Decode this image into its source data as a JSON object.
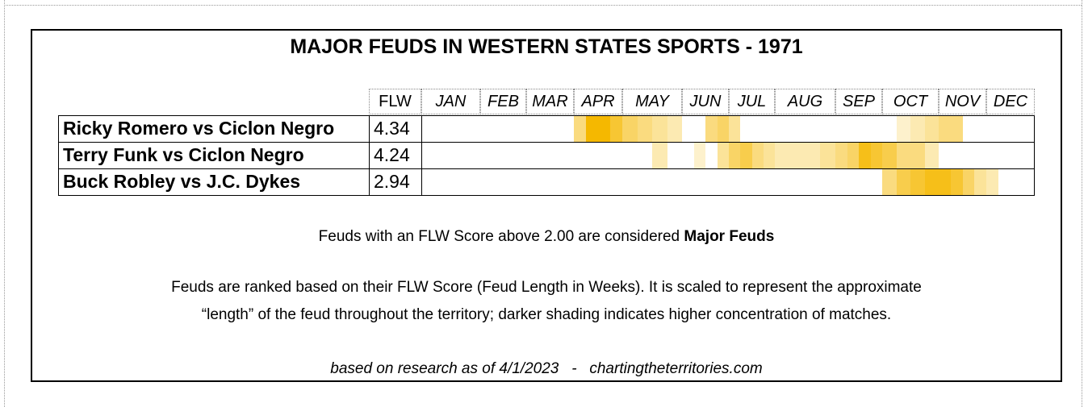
{
  "title": "MAJOR FEUDS IN WESTERN STATES SPORTS - 1971",
  "table": {
    "score_header": "FLW",
    "months": [
      "JAN",
      "FEB",
      "MAR",
      "APR",
      "MAY",
      "JUN",
      "JUL",
      "AUG",
      "SEP",
      "OCT",
      "NOV",
      "DEC"
    ],
    "rows": [
      {
        "name": "Ricky Romero vs Ciclon Negro",
        "score": "4.34",
        "shading": [
          0,
          0,
          0,
          0,
          0,
          0,
          0,
          0,
          0,
          0,
          0,
          0,
          0.5,
          1,
          1,
          0.8,
          0.6,
          0.5,
          0.4,
          0.3,
          0,
          0,
          0.5,
          0.6,
          0.4,
          0,
          0,
          0,
          0,
          0,
          0,
          0,
          0,
          0,
          0,
          0,
          0,
          0.2,
          0.3,
          0.4,
          0.5,
          0.5,
          0,
          0,
          0,
          0,
          0,
          0
        ]
      },
      {
        "name": "Terry Funk vs Ciclon Negro",
        "score": "4.24",
        "shading": [
          0,
          0,
          0,
          0,
          0,
          0,
          0,
          0,
          0,
          0,
          0,
          0,
          0,
          0,
          0,
          0,
          0,
          0,
          0.3,
          0,
          0,
          0.2,
          0,
          0.4,
          0.6,
          0.7,
          0.5,
          0.4,
          0.3,
          0.3,
          0.3,
          0.4,
          0.5,
          0.6,
          0.9,
          0.8,
          0.7,
          0.5,
          0.5,
          0.3,
          0,
          0,
          0,
          0,
          0,
          0,
          0,
          0
        ]
      },
      {
        "name": "Buck Robley vs J.C. Dykes",
        "score": "2.94",
        "shading": [
          0,
          0,
          0,
          0,
          0,
          0,
          0,
          0,
          0,
          0,
          0,
          0,
          0,
          0,
          0,
          0,
          0,
          0,
          0,
          0,
          0,
          0,
          0,
          0,
          0,
          0,
          0,
          0,
          0,
          0,
          0,
          0,
          0,
          0,
          0,
          0,
          0.5,
          0.7,
          0.8,
          0.9,
          0.9,
          0.8,
          0.6,
          0.4,
          0.3,
          0,
          0,
          0
        ]
      }
    ]
  },
  "notes": {
    "major": [
      "Feuds with an FLW Score above 2.00 are considered ",
      "Major Feuds"
    ],
    "explanation": [
      "Feuds are ranked based on their FLW Score (Feud Length in Weeks). It is scaled to represent the approximate",
      "“length” of the feud throughout the territory; darker shading indicates higher concentration of matches."
    ],
    "footer": "based on research as of 4/1/2023   -   chartingtheterritories.com"
  }
}
